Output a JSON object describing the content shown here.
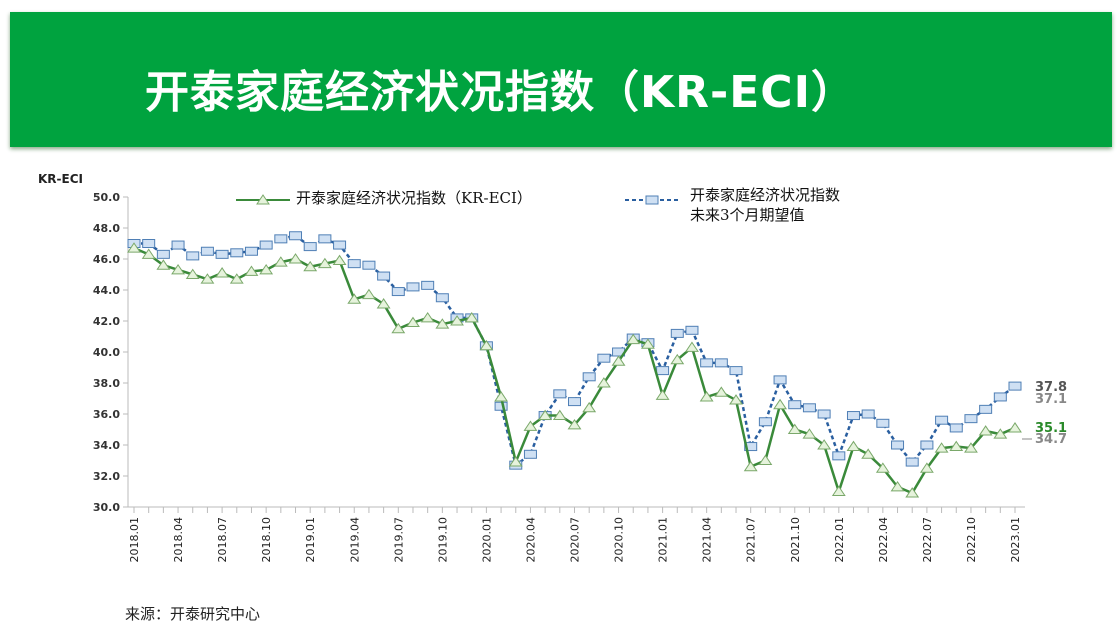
{
  "header": {
    "title": "开泰家庭经济状况指数（KR-ECI）"
  },
  "source": "来源：开泰研究中心",
  "chart_data": {
    "type": "line",
    "ylabel": "KR-ECI",
    "ylim": [
      30,
      50
    ],
    "yticks": [
      "30.0",
      "32.0",
      "34.0",
      "36.0",
      "38.0",
      "40.0",
      "42.0",
      "44.0",
      "46.0",
      "48.0",
      "50.0"
    ],
    "grid": false,
    "legend": "top",
    "x_start": "2018.01",
    "x_end": "2023.01",
    "xtick_labels": [
      "2018.01",
      "2018.04",
      "2018.07",
      "2018.10",
      "2019.01",
      "2019.04",
      "2019.07",
      "2019.10",
      "2020.01",
      "2020.04",
      "2020.07",
      "2020.10",
      "2021.01",
      "2021.04",
      "2021.07",
      "2021.10",
      "2022.01",
      "2022.04",
      "2022.07",
      "2022.10",
      "2023.01"
    ],
    "series": [
      {
        "name": "开泰家庭经济状况指数（KR-ECI）",
        "color": "#3a8a3a",
        "marker": "triangle",
        "style": "solid",
        "values": [
          46.7,
          46.3,
          45.6,
          45.3,
          45.0,
          44.7,
          45.1,
          44.7,
          45.2,
          45.3,
          45.8,
          46.0,
          45.5,
          45.7,
          45.9,
          43.4,
          43.7,
          43.1,
          41.5,
          41.9,
          42.2,
          41.8,
          42.0,
          42.2,
          40.4,
          37.1,
          32.9,
          35.2,
          35.9,
          35.9,
          35.3,
          36.4,
          38.0,
          39.4,
          40.8,
          40.5,
          37.2,
          39.5,
          40.3,
          37.1,
          37.4,
          36.9,
          32.6,
          33.0,
          36.6,
          35.0,
          34.7,
          34.0,
          31.0,
          33.9,
          33.4,
          32.5,
          31.3,
          30.9,
          32.5,
          33.8,
          33.9,
          33.8,
          34.9,
          34.7,
          35.1
        ],
        "end_labels": [
          {
            "text": "35.1",
            "color": "#2a8a2a"
          },
          {
            "text": "34.7",
            "color": "#888888"
          }
        ]
      },
      {
        "name": "开泰家庭经济状况指数\n未来3个月期望值",
        "name_lines": [
          "开泰家庭经济状况指数",
          "未来3个月期望值"
        ],
        "color": "#2a5fa0",
        "marker": "square",
        "style": "dashed",
        "values": [
          47.0,
          47.0,
          46.3,
          46.9,
          46.2,
          46.5,
          46.3,
          46.4,
          46.5,
          46.9,
          47.3,
          47.5,
          46.8,
          47.3,
          46.9,
          45.7,
          45.6,
          44.9,
          43.9,
          44.2,
          44.3,
          43.5,
          42.2,
          42.2,
          40.4,
          36.5,
          32.7,
          33.4,
          35.9,
          37.3,
          36.8,
          38.4,
          39.6,
          40.0,
          40.9,
          40.6,
          38.8,
          41.2,
          41.4,
          39.3,
          39.3,
          38.8,
          33.9,
          35.5,
          38.2,
          36.6,
          36.4,
          36.0,
          33.3,
          35.9,
          36.0,
          35.4,
          34.0,
          32.9,
          34.0,
          35.6,
          35.1,
          35.7,
          36.3,
          37.1,
          37.8
        ],
        "end_labels": [
          {
            "text": "37.8",
            "color": "#555555"
          },
          {
            "text": "37.1",
            "color": "#888888"
          }
        ]
      }
    ]
  }
}
